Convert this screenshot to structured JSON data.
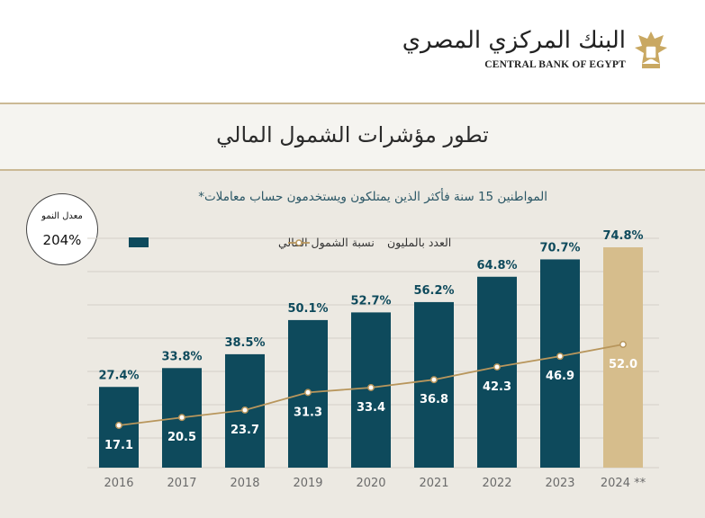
{
  "header": {
    "brand_ar": "البنك المركزي المصري",
    "brand_en": "CENTRAL BANK OF EGYPT"
  },
  "title": "تطور مؤشرات الشمول المالي",
  "subtitle": "المواطنين 15 سنة فأكثر الذين يمتلكون ويستخدمون حساب معاملات*",
  "growth_badge": {
    "label": "معدل النمو",
    "value": "204%"
  },
  "colors": {
    "bar": "#0e4a5c",
    "bar_highlight": "#d6bd8c",
    "line": "#b8965c",
    "label": "#0e4a5c"
  },
  "chart_data": {
    "type": "bar",
    "categories": [
      "2016",
      "2017",
      "2018",
      "2019",
      "2020",
      "2021",
      "2022",
      "2023",
      "2024 **"
    ],
    "legend": [
      "نسبة الشمول المالي",
      "العدد بالمليون"
    ],
    "series": [
      {
        "name": "نسبة الشمول المالي",
        "type": "bar",
        "values": [
          27.4,
          33.8,
          38.5,
          50.1,
          52.7,
          56.2,
          64.8,
          70.7,
          74.8
        ],
        "labels": [
          "27.4%",
          "33.8%",
          "38.5%",
          "50.1%",
          "52.7%",
          "56.2%",
          "64.8%",
          "70.7%",
          "74.8%"
        ]
      },
      {
        "name": "العدد بالمليون",
        "type": "line",
        "values": [
          17.1,
          20.5,
          23.7,
          31.3,
          33.4,
          36.8,
          42.3,
          46.9,
          52.0
        ],
        "labels": [
          "17.1",
          "20.5",
          "23.7",
          "31.3",
          "33.4",
          "36.8",
          "42.3",
          "46.9",
          "52.0"
        ]
      }
    ],
    "ylim": [
      0,
      80
    ],
    "grid": true,
    "legend_position": "top-right",
    "highlight_category": "2024 **"
  }
}
